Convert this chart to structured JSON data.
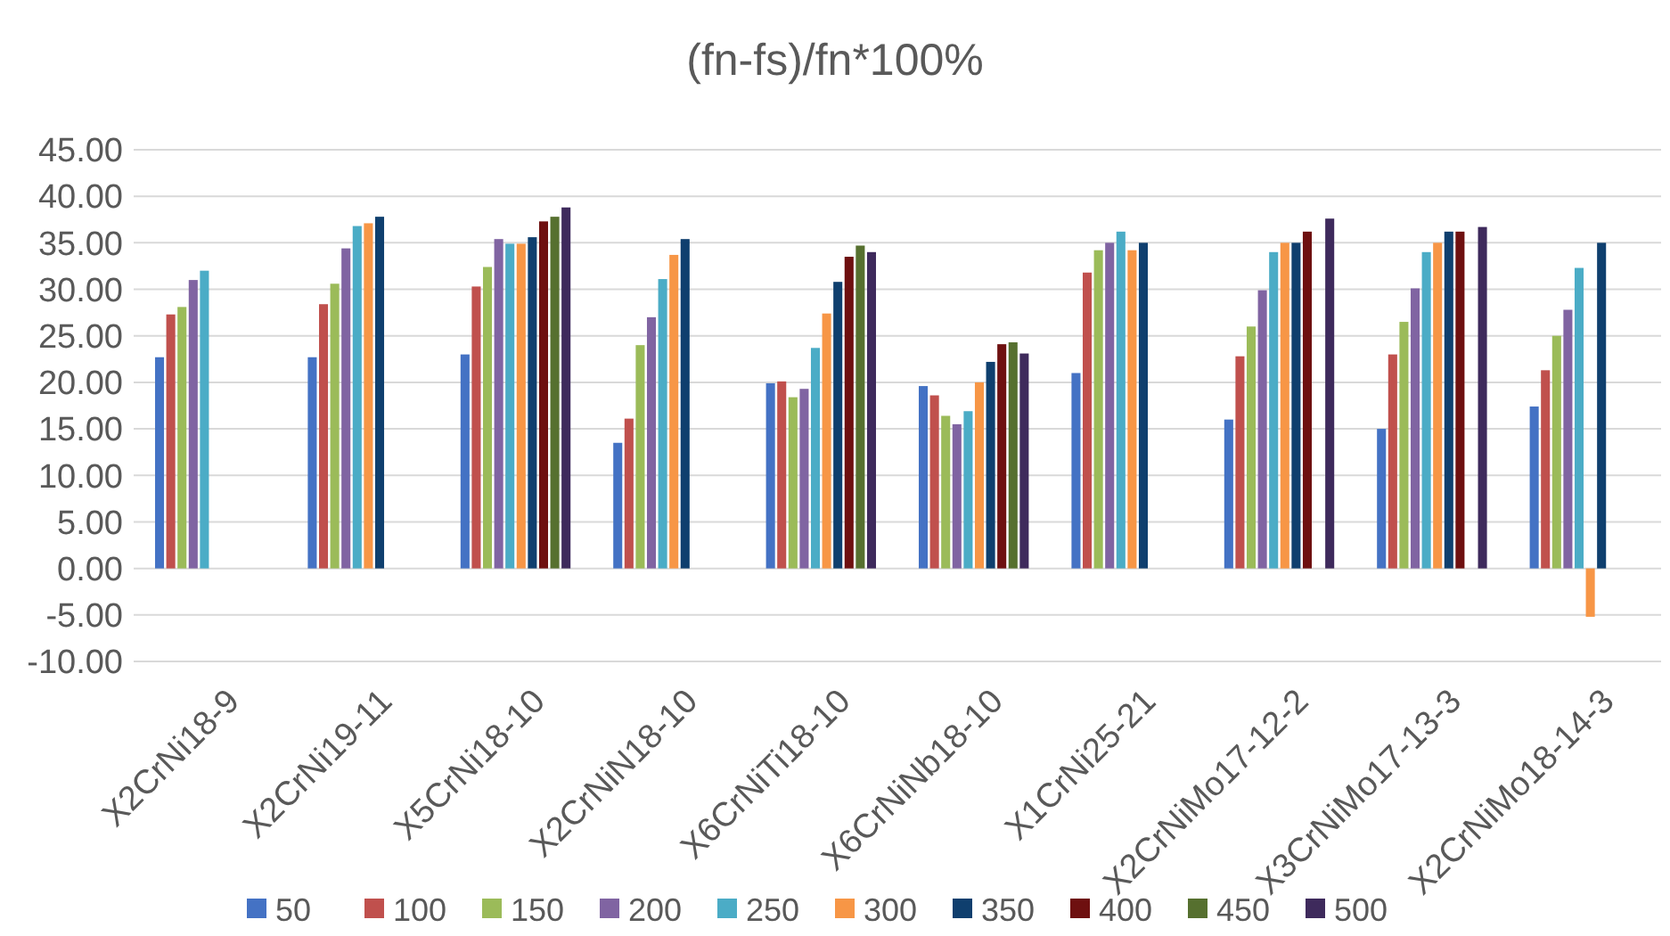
{
  "chart_data": {
    "type": "bar",
    "title": "(fn-fs)/fn*100%",
    "categories": [
      "X2CrNi18-9",
      "X2CrNi19-11",
      "X5CrNi18-10",
      "X2CrNiN18-10",
      "X6CrNiTi18-10",
      "X6CrNiNb18-10",
      "X1CrNi25-21",
      "X2CrNiMo17-12-2",
      "X3CrNiMo17-13-3",
      "X2CrNiMo18-14-3"
    ],
    "series": [
      {
        "name": "50",
        "color": "#4472c4",
        "values": [
          22.7,
          22.7,
          23.0,
          13.5,
          19.9,
          19.6,
          21.0,
          16.0,
          15.0,
          17.4
        ]
      },
      {
        "name": "100",
        "color": "#c0504d",
        "values": [
          27.3,
          28.4,
          30.3,
          16.1,
          20.1,
          18.6,
          31.8,
          22.8,
          23.0,
          21.3
        ]
      },
      {
        "name": "150",
        "color": "#9bbb59",
        "values": [
          28.1,
          30.6,
          32.4,
          24.0,
          18.4,
          16.4,
          34.2,
          26.0,
          26.5,
          25.0
        ]
      },
      {
        "name": "200",
        "color": "#8064a2",
        "values": [
          31.0,
          34.4,
          35.4,
          27.0,
          19.3,
          15.5,
          35.0,
          29.9,
          30.1,
          27.8
        ]
      },
      {
        "name": "250",
        "color": "#4bacc6",
        "values": [
          32.0,
          36.8,
          34.9,
          31.1,
          23.7,
          16.9,
          36.2,
          34.0,
          34.0,
          32.3
        ]
      },
      {
        "name": "300",
        "color": "#f79646",
        "values": [
          null,
          37.1,
          34.9,
          33.7,
          27.4,
          20.0,
          34.2,
          35.0,
          35.0,
          -5.2
        ]
      },
      {
        "name": "350",
        "color": "#0f3f6e",
        "values": [
          null,
          37.8,
          35.6,
          35.4,
          30.8,
          22.2,
          35.0,
          35.0,
          36.2,
          35.0
        ]
      },
      {
        "name": "400",
        "color": "#6e1010",
        "values": [
          null,
          null,
          37.3,
          null,
          33.5,
          24.1,
          null,
          36.2,
          36.2,
          null
        ]
      },
      {
        "name": "450",
        "color": "#56702f",
        "values": [
          null,
          null,
          37.8,
          null,
          34.7,
          24.3,
          null,
          null,
          null,
          null
        ]
      },
      {
        "name": "500",
        "color": "#3e2a5c",
        "values": [
          null,
          null,
          38.8,
          null,
          34.0,
          23.1,
          null,
          37.6,
          36.7,
          null
        ]
      }
    ],
    "ylim": [
      -10,
      45
    ],
    "yticks": [
      {
        "value": -10,
        "label": "-10.00"
      },
      {
        "value": -5,
        "label": "-5.00"
      },
      {
        "value": 0,
        "label": "0.00"
      },
      {
        "value": 5,
        "label": "5.00"
      },
      {
        "value": 10,
        "label": "10.00"
      },
      {
        "value": 15,
        "label": "15.00"
      },
      {
        "value": 20,
        "label": "20.00"
      },
      {
        "value": 25,
        "label": "25.00"
      },
      {
        "value": 30,
        "label": "30.00"
      },
      {
        "value": 35,
        "label": "35.00"
      },
      {
        "value": 40,
        "label": "40.00"
      },
      {
        "value": 45,
        "label": "45.00"
      }
    ],
    "grid": "y",
    "legend": "bottom"
  }
}
